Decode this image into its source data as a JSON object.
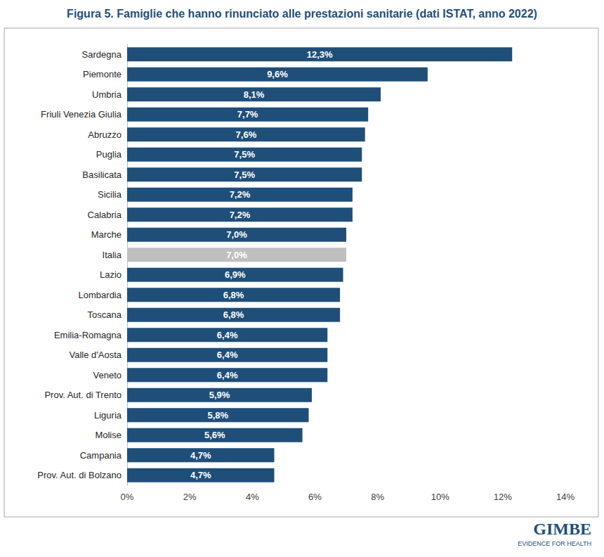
{
  "chart_data": {
    "type": "bar",
    "orientation": "horizontal",
    "title": "Figura 5. Famiglie che hanno rinunciato alle prestazioni sanitarie (dati ISTAT, anno 2022)",
    "categories": [
      "Sardegna",
      "Piemonte",
      "Umbria",
      "Friuli Venezia Giulia",
      "Abruzzo",
      "Puglia",
      "Basilicata",
      "Sicilia",
      "Calabria",
      "Marche",
      "Italia",
      "Lazio",
      "Lombardia",
      "Toscana",
      "Emilia-Romagna",
      "Valle d'Aosta",
      "Veneto",
      "Prov. Aut. di Trento",
      "Liguria",
      "Molise",
      "Campania",
      "Prov. Aut. di Bolzano"
    ],
    "values": [
      12.3,
      9.6,
      8.1,
      7.7,
      7.6,
      7.5,
      7.5,
      7.2,
      7.2,
      7.0,
      7.0,
      6.9,
      6.8,
      6.8,
      6.4,
      6.4,
      6.4,
      5.9,
      5.8,
      5.6,
      4.7,
      4.7
    ],
    "value_labels": [
      "12,3%",
      "9,6%",
      "8,1%",
      "7,7%",
      "7,6%",
      "7,5%",
      "7,5%",
      "7,2%",
      "7,2%",
      "7,0%",
      "7,0%",
      "6,9%",
      "6,8%",
      "6,8%",
      "6,4%",
      "6,4%",
      "6,4%",
      "5,9%",
      "5,8%",
      "5,6%",
      "4,7%",
      "4,7%"
    ],
    "colors": [
      "#1f4e79",
      "#1f4e79",
      "#1f4e79",
      "#1f4e79",
      "#1f4e79",
      "#1f4e79",
      "#1f4e79",
      "#1f4e79",
      "#1f4e79",
      "#1f4e79",
      "#bfbfbf",
      "#1f4e79",
      "#1f4e79",
      "#1f4e79",
      "#1f4e79",
      "#1f4e79",
      "#1f4e79",
      "#1f4e79",
      "#1f4e79",
      "#1f4e79",
      "#1f4e79",
      "#1f4e79"
    ],
    "xlim": [
      0,
      14
    ],
    "xticks": [
      {
        "value": 0,
        "label": "0%"
      },
      {
        "value": 2,
        "label": "2%"
      },
      {
        "value": 4,
        "label": "4%"
      },
      {
        "value": 6,
        "label": "6%"
      },
      {
        "value": 8,
        "label": "8%"
      },
      {
        "value": 10,
        "label": "10%"
      },
      {
        "value": 12,
        "label": "12%"
      },
      {
        "value": 14,
        "label": "14%"
      }
    ],
    "grid": false,
    "data_labels": true,
    "annotations": [
      "GIMBE",
      "EVIDENCE FOR HEALTH"
    ]
  }
}
